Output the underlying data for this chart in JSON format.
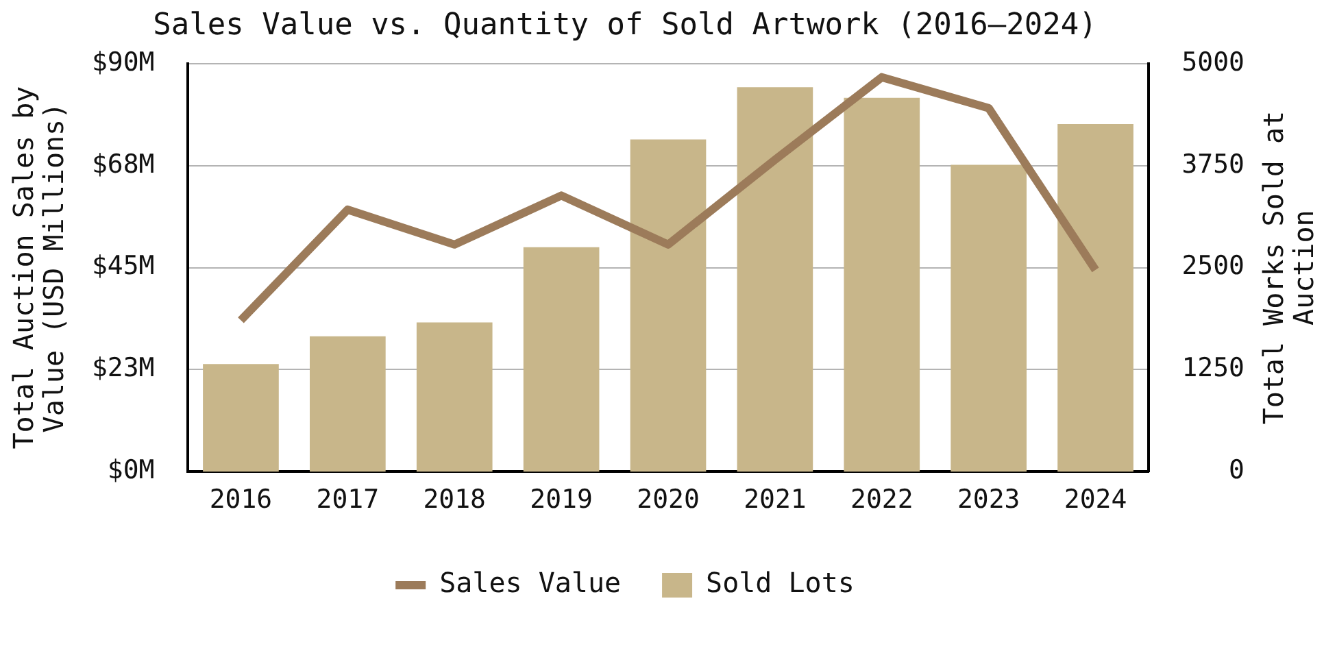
{
  "chart_data": {
    "type": "bar",
    "title": "Sales Value vs. Quantity of Sold Artwork (2016–2024)",
    "ylabel": "Total Auction Sales by Value (USD Millions)",
    "y2label": "Total Works Sold at Auction",
    "categories": [
      "2016",
      "2017",
      "2018",
      "2019",
      "2020",
      "2021",
      "2022",
      "2023",
      "2024"
    ],
    "series": [
      {
        "name": "Sales Value",
        "type": "line",
        "color": "#9c7b5a",
        "values": [
          33.4,
          57.8,
          50.1,
          60.9,
          50.1,
          68.8,
          87.0,
          80.2,
          44.5
        ]
      },
      {
        "name": "Sold Lots",
        "axis": "y2",
        "color": "#c8b68a",
        "values": [
          1320,
          1660,
          1830,
          2750,
          4070,
          4710,
          4580,
          3760,
          4260
        ]
      }
    ],
    "ylim": [
      0,
      90
    ],
    "yticks": [
      {
        "value": 0,
        "label": "$0M"
      },
      {
        "value": 22.5,
        "label": "$23M"
      },
      {
        "value": 45,
        "label": "$45M"
      },
      {
        "value": 67.5,
        "label": "$68M"
      },
      {
        "value": 90,
        "label": "$90M"
      }
    ],
    "y2lim": [
      0,
      5000
    ],
    "y2ticks": [
      0,
      1250,
      2500,
      3750,
      5000
    ],
    "grid": "y",
    "legend": "bottom",
    "marker": "none"
  }
}
